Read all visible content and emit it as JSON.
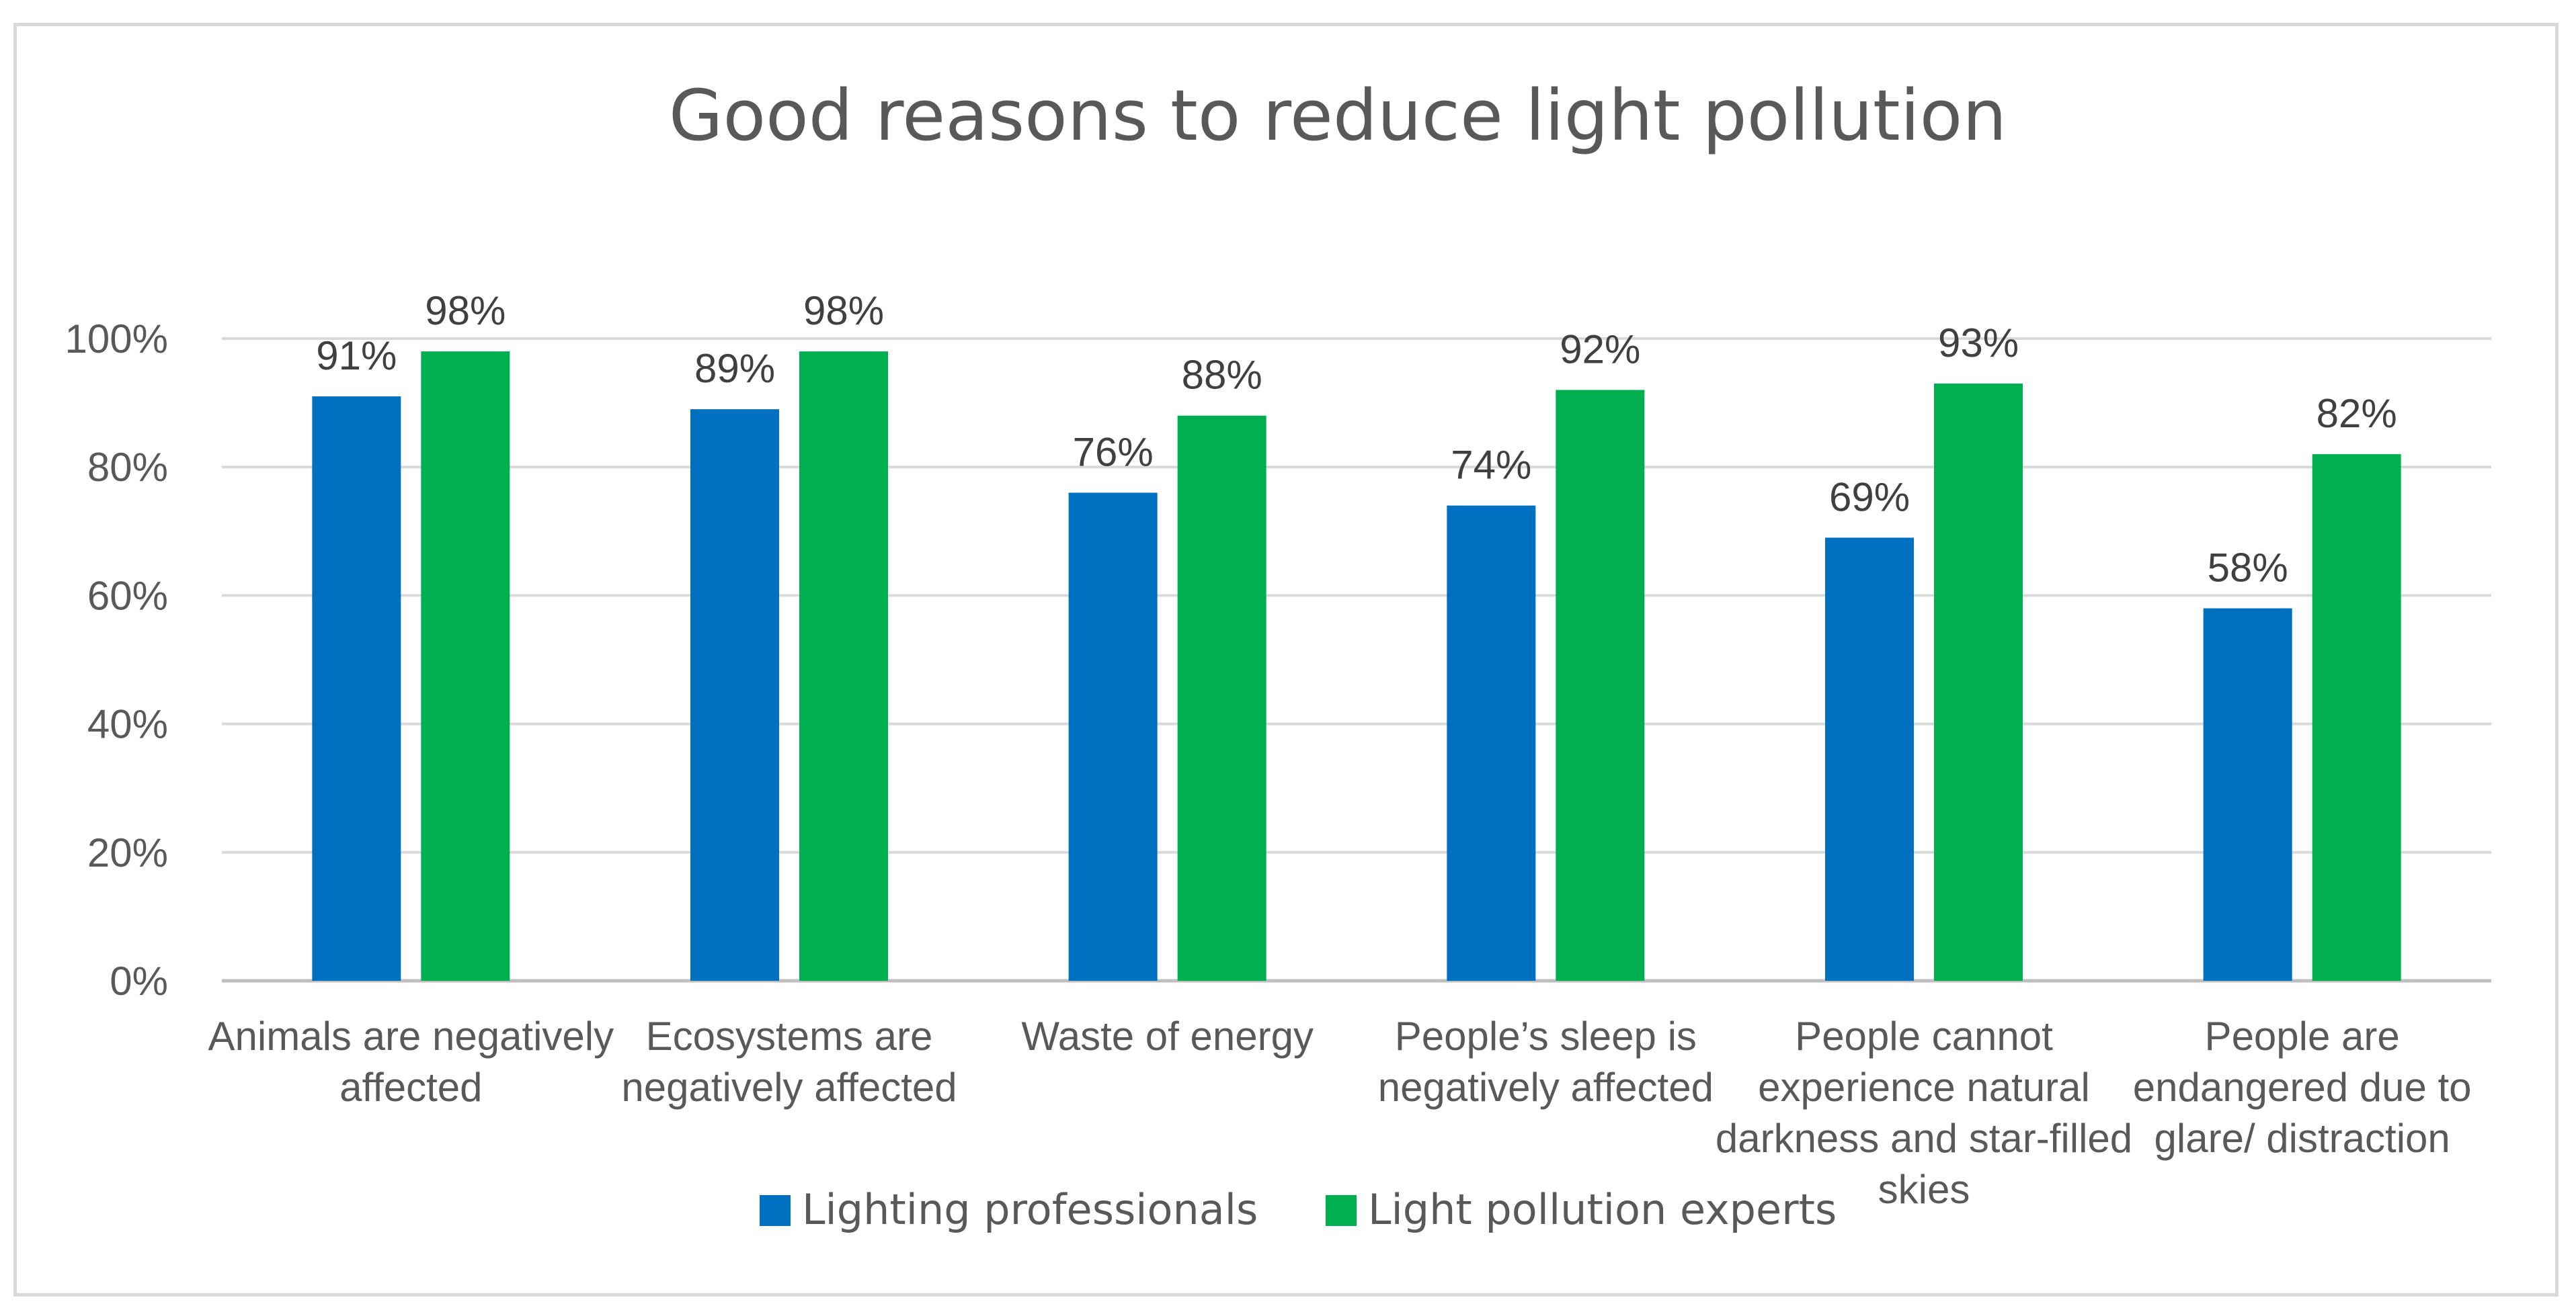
{
  "chart_data": {
    "type": "bar",
    "title": "Good reasons to reduce light pollution",
    "xlabel": "",
    "ylabel": "",
    "ylim": [
      0,
      100
    ],
    "y_ticks": [
      "0%",
      "20%",
      "40%",
      "60%",
      "80%",
      "100%"
    ],
    "y_tick_values": [
      0,
      20,
      40,
      60,
      80,
      100
    ],
    "grid": true,
    "legend_position": "bottom",
    "categories": [
      [
        "Animals are negatively",
        "affected"
      ],
      [
        "Ecosystems are",
        "negatively affected"
      ],
      [
        "Waste of energy"
      ],
      [
        "People’s sleep is",
        "negatively affected"
      ],
      [
        "People cannot",
        "experience natural",
        "darkness and star-filled",
        "skies"
      ],
      [
        "People are",
        "endangered due to",
        "glare/ distraction"
      ]
    ],
    "series": [
      {
        "name": "Lighting professionals",
        "color": "#0070c0",
        "values": [
          91,
          89,
          76,
          74,
          69,
          58
        ],
        "labels": [
          "91%",
          "89%",
          "76%",
          "74%",
          "69%",
          "58%"
        ]
      },
      {
        "name": "Light pollution experts",
        "color": "#00b050",
        "values": [
          98,
          98,
          88,
          92,
          93,
          82
        ],
        "labels": [
          "98%",
          "98%",
          "88%",
          "92%",
          "93%",
          "82%"
        ]
      }
    ]
  }
}
